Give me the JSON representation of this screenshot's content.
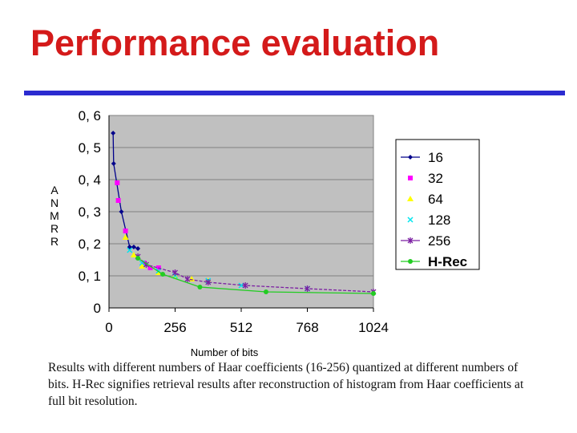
{
  "slide": {
    "title": "Performance evaluation",
    "caption": "Results with different numbers of Haar coefficients (16-256) quantized at different numbers of bits. H-Rec signifies retrieval results after reconstruction of histogram from Haar coefficients at full bit resolution.",
    "title_color": "#d41a1a",
    "rule_color": "#2b2bd0"
  },
  "chart_data": {
    "type": "line",
    "title": "",
    "xlabel": "Number of bits",
    "ylabel": "ANMRR",
    "xlim": [
      0,
      1024
    ],
    "ylim": [
      0,
      0.6
    ],
    "x_ticks": [
      0,
      256,
      512,
      768,
      1024
    ],
    "x_tick_labels": [
      "0",
      "256",
      "512",
      "768",
      "1024"
    ],
    "y_ticks": [
      0,
      0.1,
      0.2,
      0.3,
      0.4,
      0.5,
      0.6
    ],
    "y_tick_labels": [
      "0",
      "0, 1",
      "0, 2",
      "0, 3",
      "0, 4",
      "0, 5",
      "0, 6"
    ],
    "grid": "horizontal",
    "plot_background": "#c0c0c0",
    "legend_position": "right",
    "series": [
      {
        "name": "16",
        "color": "#00008b",
        "marker": "diamond",
        "line": true,
        "points": [
          [
            16,
            0.545
          ],
          [
            18,
            0.45
          ],
          [
            48,
            0.3
          ],
          [
            80,
            0.19
          ],
          [
            96,
            0.19
          ],
          [
            112,
            0.185
          ]
        ]
      },
      {
        "name": "32",
        "color": "#ff00ff",
        "marker": "square",
        "line": false,
        "points": [
          [
            32,
            0.39
          ],
          [
            36,
            0.335
          ],
          [
            64,
            0.24
          ],
          [
            136,
            0.14
          ],
          [
            160,
            0.125
          ],
          [
            192,
            0.125
          ]
        ]
      },
      {
        "name": "64",
        "color": "#ffff00",
        "marker": "triangle",
        "line": false,
        "points": [
          [
            64,
            0.22
          ],
          [
            96,
            0.165
          ],
          [
            128,
            0.13
          ],
          [
            192,
            0.11
          ],
          [
            256,
            0.1
          ],
          [
            320,
            0.09
          ],
          [
            384,
            0.085
          ]
        ]
      },
      {
        "name": "128",
        "color": "#00e5ee",
        "marker": "x",
        "line": false,
        "points": [
          [
            80,
            0.18
          ],
          [
            128,
            0.14
          ],
          [
            192,
            0.115
          ],
          [
            256,
            0.1
          ],
          [
            384,
            0.085
          ],
          [
            512,
            0.07
          ],
          [
            768,
            0.06
          ]
        ]
      },
      {
        "name": "256",
        "color": "#7b1fa2",
        "marker": "star",
        "line": true,
        "points": [
          [
            112,
            0.16
          ],
          [
            144,
            0.135
          ],
          [
            256,
            0.11
          ],
          [
            304,
            0.09
          ],
          [
            384,
            0.08
          ],
          [
            528,
            0.07
          ],
          [
            768,
            0.06
          ],
          [
            1024,
            0.05
          ]
        ]
      },
      {
        "name": "H-Rec",
        "color": "#22cc22",
        "marker": "circle",
        "line": true,
        "points": [
          [
            112,
            0.155
          ],
          [
            208,
            0.105
          ],
          [
            352,
            0.065
          ],
          [
            608,
            0.05
          ],
          [
            1024,
            0.045
          ]
        ]
      }
    ]
  }
}
